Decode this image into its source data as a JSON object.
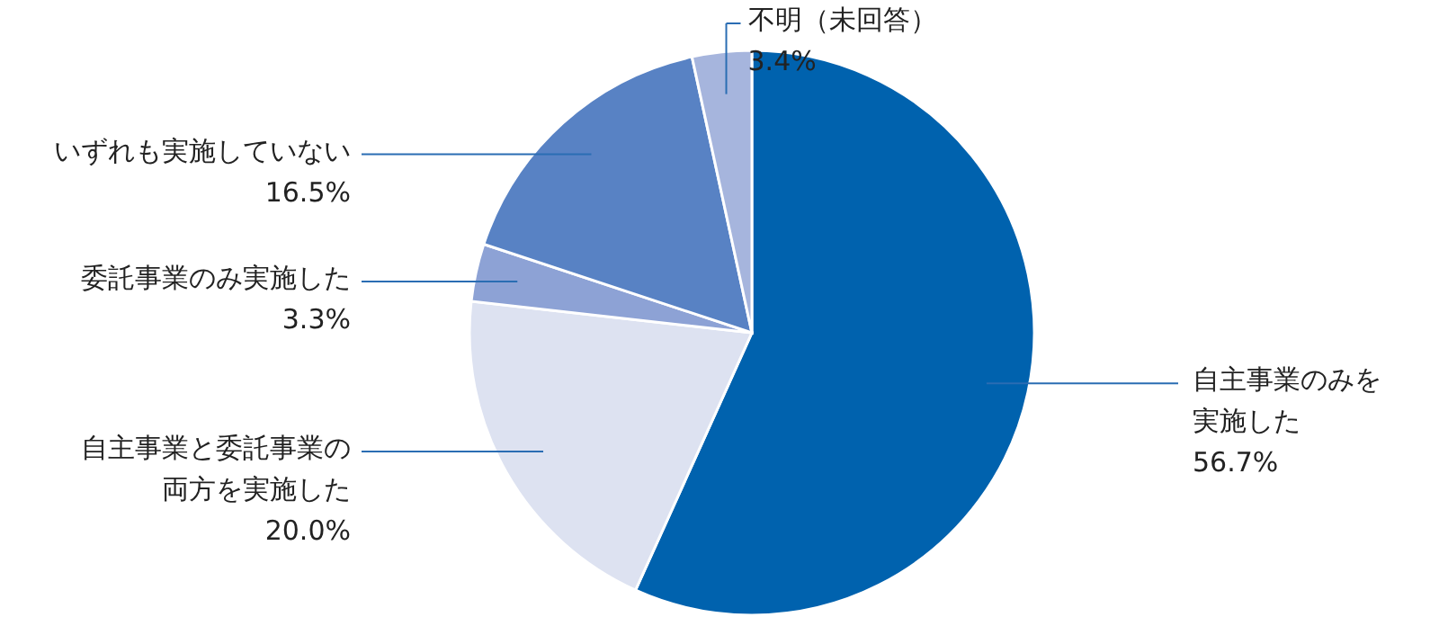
{
  "chart_data": {
    "type": "pie",
    "categories": [
      "自主事業のみを実施した",
      "自主事業と委託事業の両方を実施した",
      "委託事業のみ実施した",
      "いずれも実施していない",
      "不明（未回答）"
    ],
    "values": [
      56.7,
      20.0,
      3.3,
      16.5,
      3.4
    ],
    "value_labels": [
      "56.7%",
      "20.0%",
      "3.3%",
      "16.5%",
      "3.4%"
    ],
    "colors": [
      "#0062ae",
      "#dde2f1",
      "#8da2d5",
      "#5882c4",
      "#a6b5dd"
    ]
  }
}
